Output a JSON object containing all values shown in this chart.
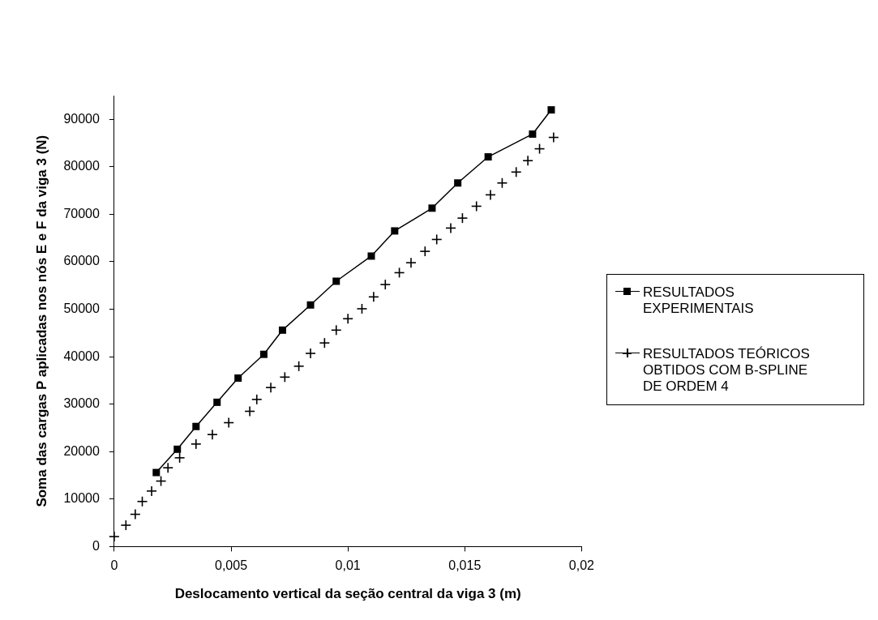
{
  "chart_data": {
    "type": "line",
    "xlabel": "Deslocamento vertical da seção central da viga 3 (m)",
    "ylabel": "Soma das cargas P aplicadas nos nós E e F da viga 3 (N)",
    "xlim": [
      0,
      0.02
    ],
    "xticks": [
      {
        "value": 0,
        "label": "0"
      },
      {
        "value": 0.005,
        "label": "0,005"
      },
      {
        "value": 0.01,
        "label": "0,01"
      },
      {
        "value": 0.015,
        "label": "0,015"
      },
      {
        "value": 0.02,
        "label": "0,02"
      }
    ],
    "ylim": [
      0,
      95000
    ],
    "yticks": [
      0,
      10000,
      20000,
      30000,
      40000,
      50000,
      60000,
      70000,
      80000,
      90000
    ],
    "grid": false,
    "legend": "right",
    "series": [
      {
        "name": "RESULTADOS EXPERIMENTAIS",
        "type": "line",
        "marker": "square",
        "color": "#000000",
        "x": [
          0.0018,
          0.0027,
          0.0035,
          0.0044,
          0.0053,
          0.0064,
          0.0072,
          0.0084,
          0.0095,
          0.011,
          0.012,
          0.0136,
          0.0147,
          0.016,
          0.0179,
          0.0187
        ],
        "values": [
          15600,
          20500,
          25300,
          30400,
          35500,
          40500,
          45600,
          50900,
          55900,
          61200,
          66500,
          71300,
          76600,
          82100,
          86900,
          92000
        ]
      },
      {
        "name": "RESULTADOS TEÓRICOS OBTIDOS COM B-SPLINE DE ORDEM 4",
        "type": "scatter",
        "marker": "cross",
        "color": "#000000",
        "x": [
          0,
          0.0005,
          0.0009,
          0.0012,
          0.0016,
          0.002,
          0.0023,
          0.0028,
          0.0035,
          0.0042,
          0.0049,
          0.0058,
          0.0061,
          0.0067,
          0.0073,
          0.0079,
          0.0084,
          0.009,
          0.0095,
          0.01,
          0.0106,
          0.0111,
          0.0116,
          0.0122,
          0.0127,
          0.0133,
          0.0138,
          0.0144,
          0.0149,
          0.0155,
          0.0161,
          0.0166,
          0.0172,
          0.0177,
          0.0182,
          0.0188
        ],
        "values": [
          2100,
          4500,
          6800,
          9500,
          11700,
          13800,
          16600,
          18700,
          21600,
          23600,
          26100,
          28500,
          31000,
          33500,
          35700,
          38000,
          40700,
          42900,
          45600,
          48000,
          50100,
          52600,
          55200,
          57700,
          59800,
          62200,
          64700,
          67100,
          69200,
          71700,
          74100,
          76600,
          78900,
          81300,
          83800,
          86200
        ]
      }
    ]
  }
}
